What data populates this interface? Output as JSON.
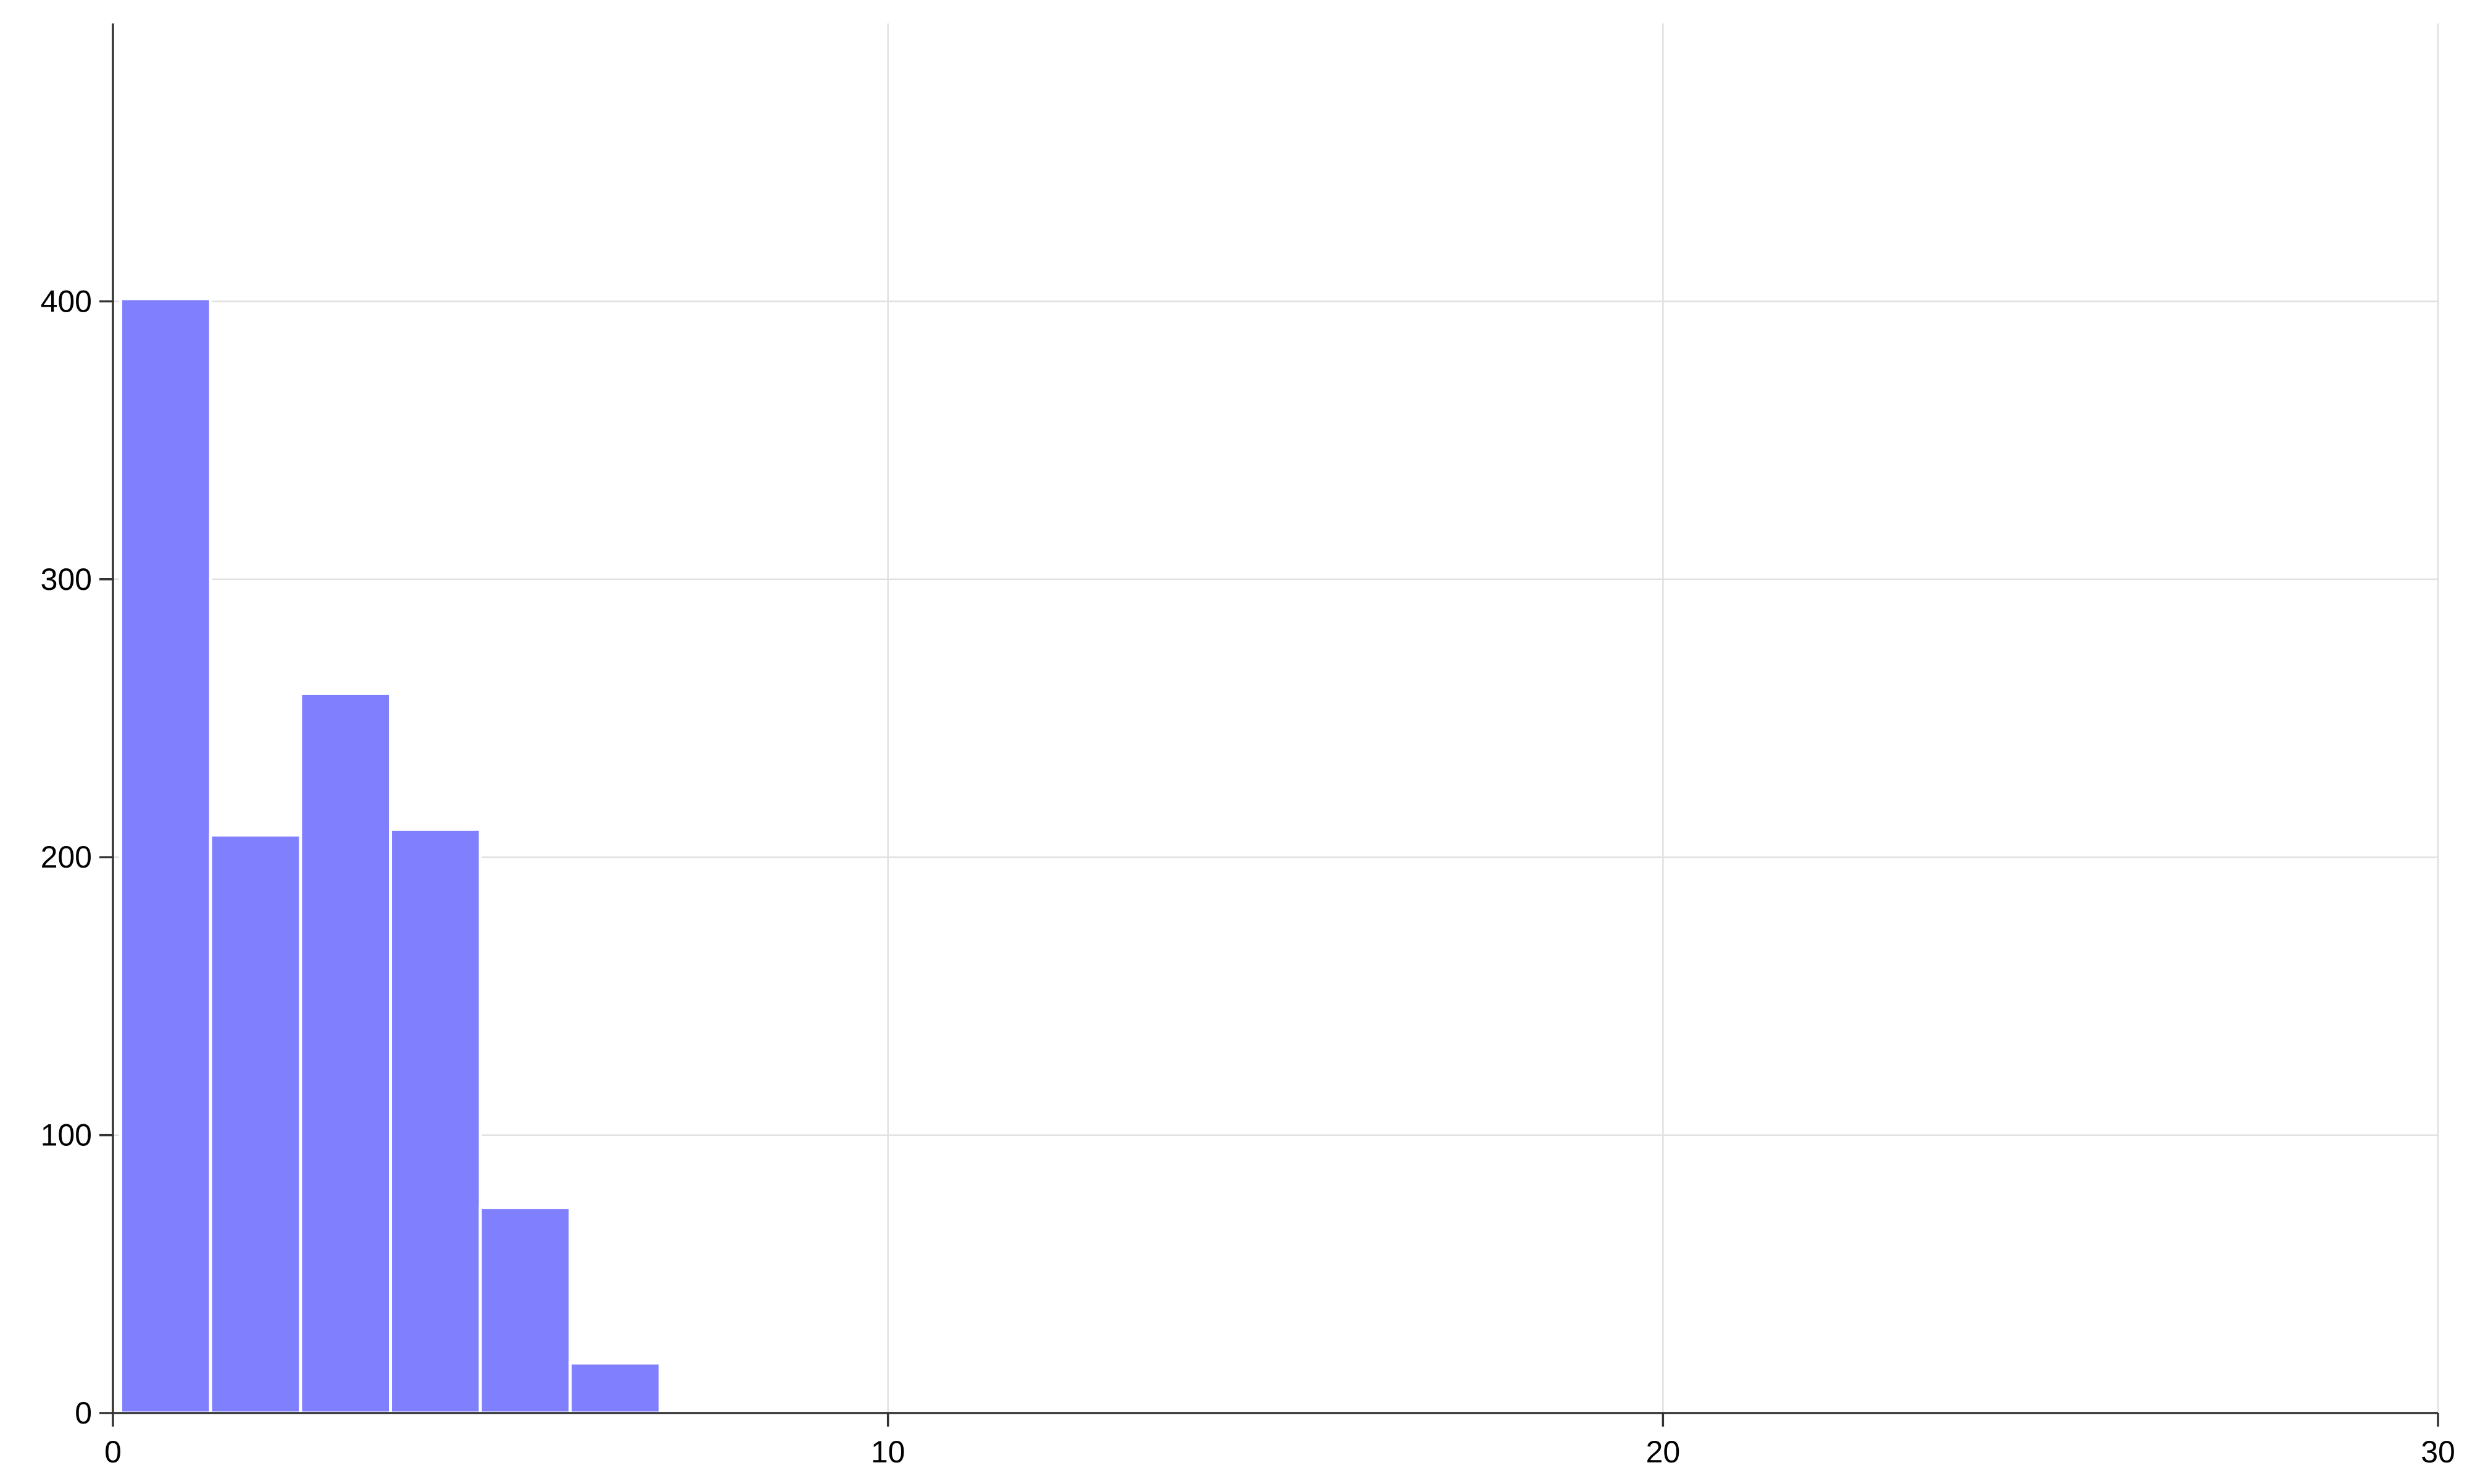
{
  "chart_data": {
    "type": "bar",
    "subtype": "histogram",
    "title": "",
    "xlabel": "",
    "ylabel": "",
    "xlim": [
      0,
      30
    ],
    "ylim": [
      0,
      500
    ],
    "x_ticks": [
      0,
      10,
      20,
      30
    ],
    "y_ticks": [
      0,
      100,
      200,
      300,
      400
    ],
    "grid": true,
    "legend": "none",
    "bar_color": "#8080ff",
    "bin_width": 1.16,
    "bins": [
      {
        "x0": 0.1,
        "x1": 1.26,
        "count": 401
      },
      {
        "x0": 1.26,
        "x1": 2.42,
        "count": 208
      },
      {
        "x0": 2.42,
        "x1": 3.58,
        "count": 259
      },
      {
        "x0": 3.58,
        "x1": 4.74,
        "count": 210
      },
      {
        "x0": 4.74,
        "x1": 5.9,
        "count": 74
      },
      {
        "x0": 5.9,
        "x1": 7.06,
        "count": 18
      },
      {
        "x0": 7.06,
        "x1": 8.22,
        "count": 1
      },
      {
        "x0": 8.22,
        "x1": 9.38,
        "count": 1
      },
      {
        "x0": 24.62,
        "x1": 25.78,
        "count": 1
      }
    ]
  }
}
